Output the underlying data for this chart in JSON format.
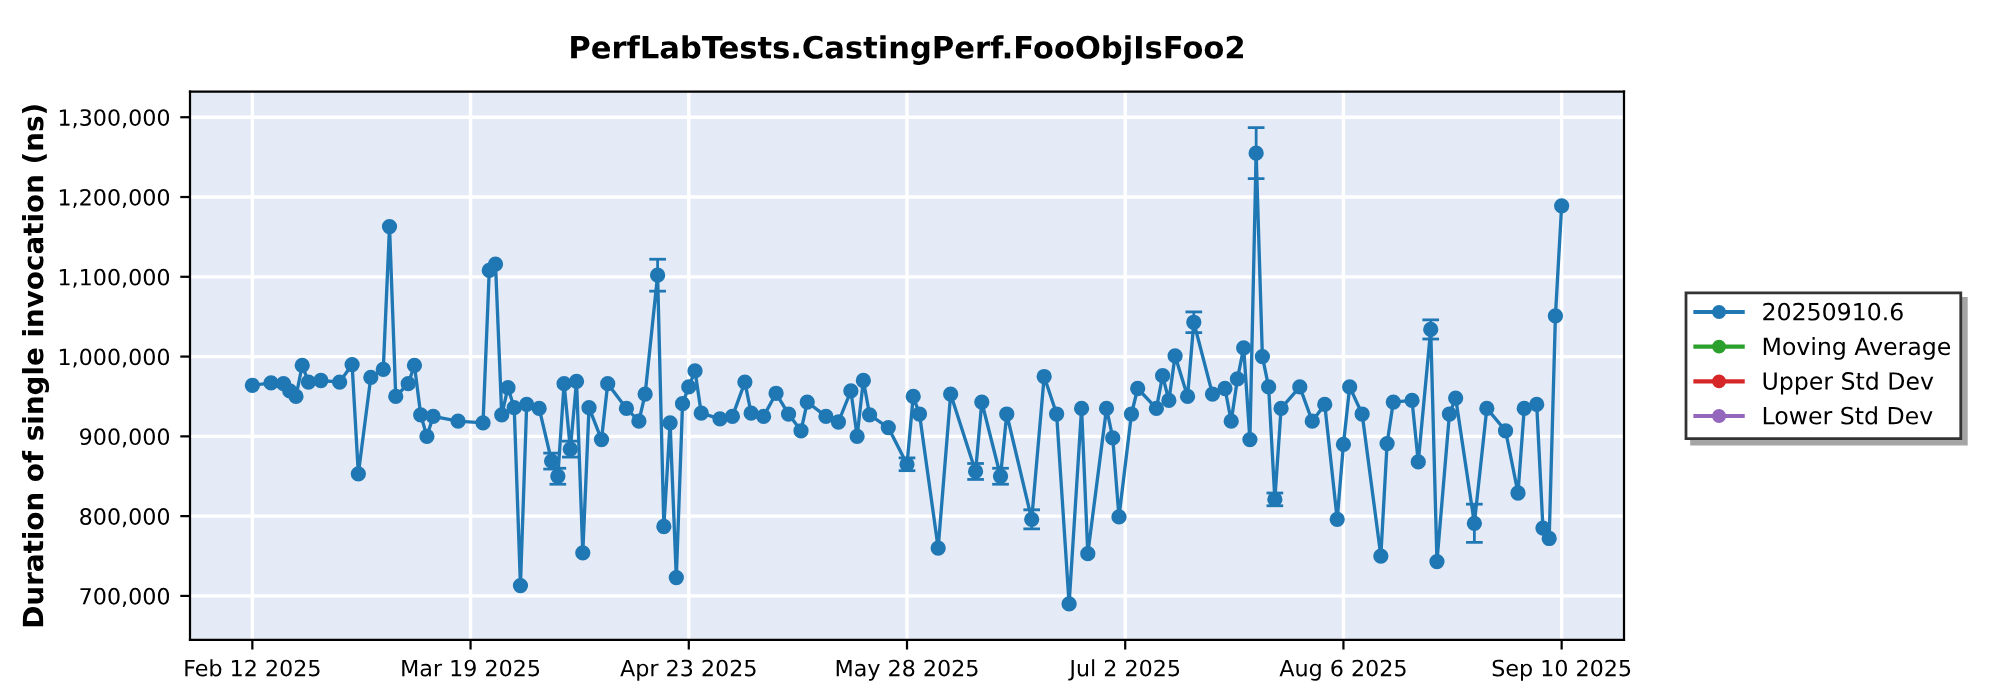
{
  "chart_data": {
    "type": "line",
    "title": "PerfLabTests.CastingPerf.FooObjIsFoo2",
    "ylabel": "Duration of single invocation (ns)",
    "x": [
      "2025-02-12",
      "2025-02-15",
      "2025-02-17",
      "2025-02-18",
      "2025-02-19",
      "2025-02-20",
      "2025-02-21",
      "2025-02-23",
      "2025-02-26",
      "2025-02-28",
      "2025-03-01",
      "2025-03-03",
      "2025-03-05",
      "2025-03-06",
      "2025-03-07",
      "2025-03-09",
      "2025-03-10",
      "2025-03-11",
      "2025-03-12",
      "2025-03-13",
      "2025-03-17",
      "2025-03-21",
      "2025-03-22",
      "2025-03-23",
      "2025-03-24",
      "2025-03-25",
      "2025-03-26",
      "2025-03-27",
      "2025-03-28",
      "2025-03-30",
      "2025-04-01",
      "2025-04-02",
      "2025-04-03",
      "2025-04-04",
      "2025-04-05",
      "2025-04-06",
      "2025-04-07",
      "2025-04-09",
      "2025-04-10",
      "2025-04-13",
      "2025-04-15",
      "2025-04-16",
      "2025-04-18",
      "2025-04-19",
      "2025-04-20",
      "2025-04-21",
      "2025-04-22",
      "2025-04-23",
      "2025-04-24",
      "2025-04-25",
      "2025-04-28",
      "2025-04-30",
      "2025-05-02",
      "2025-05-03",
      "2025-05-05",
      "2025-05-07",
      "2025-05-09",
      "2025-05-11",
      "2025-05-12",
      "2025-05-15",
      "2025-05-17",
      "2025-05-19",
      "2025-05-20",
      "2025-05-21",
      "2025-05-22",
      "2025-05-25",
      "2025-05-28",
      "2025-05-29",
      "2025-05-30",
      "2025-06-02",
      "2025-06-04",
      "2025-06-08",
      "2025-06-09",
      "2025-06-12",
      "2025-06-13",
      "2025-06-17",
      "2025-06-19",
      "2025-06-21",
      "2025-06-23",
      "2025-06-25",
      "2025-06-26",
      "2025-06-29",
      "2025-06-30",
      "2025-07-01",
      "2025-07-03",
      "2025-07-04",
      "2025-07-07",
      "2025-07-08",
      "2025-07-09",
      "2025-07-10",
      "2025-07-12",
      "2025-07-13",
      "2025-07-16",
      "2025-07-18",
      "2025-07-19",
      "2025-07-20",
      "2025-07-21",
      "2025-07-22",
      "2025-07-23",
      "2025-07-24",
      "2025-07-25",
      "2025-07-26",
      "2025-07-27",
      "2025-07-30",
      "2025-08-01",
      "2025-08-03",
      "2025-08-05",
      "2025-08-06",
      "2025-08-07",
      "2025-08-09",
      "2025-08-12",
      "2025-08-13",
      "2025-08-14",
      "2025-08-17",
      "2025-08-18",
      "2025-08-20",
      "2025-08-21",
      "2025-08-23",
      "2025-08-24",
      "2025-08-27",
      "2025-08-29",
      "2025-09-01",
      "2025-09-03",
      "2025-09-04",
      "2025-09-06",
      "2025-09-07",
      "2025-09-08",
      "2025-09-09",
      "2025-09-10"
    ],
    "series": [
      {
        "name": "20250910.6",
        "color": "#1f77b4",
        "values": [
          964000,
          967000,
          966000,
          957000,
          950000,
          989000,
          968000,
          970000,
          968000,
          990000,
          853000,
          974000,
          984000,
          1163000,
          950000,
          966000,
          989000,
          927000,
          900000,
          925000,
          919000,
          917000,
          1108000,
          1116000,
          927000,
          961000,
          936000,
          713000,
          940000,
          935000,
          869000,
          850000,
          966000,
          884000,
          969000,
          754000,
          936000,
          896000,
          966000,
          935000,
          919000,
          953000,
          1102000,
          787000,
          917000,
          723000,
          941000,
          962000,
          982000,
          929000,
          922000,
          925000,
          968000,
          929000,
          925000,
          954000,
          928000,
          907000,
          943000,
          925000,
          918000,
          957000,
          900000,
          970000,
          927000,
          911000,
          865000,
          950000,
          928000,
          760000,
          953000,
          856000,
          943000,
          850000,
          928000,
          796000,
          975000,
          928000,
          690000,
          935000,
          753000,
          935000,
          898000,
          799000,
          928000,
          960000,
          935000,
          976000,
          945000,
          1001000,
          950000,
          1043000,
          953000,
          960000,
          919000,
          972000,
          1011000,
          896000,
          1255000,
          1000000,
          962000,
          821000,
          935000,
          962000,
          919000,
          940000,
          796000,
          890000,
          962000,
          928000,
          750000,
          891000,
          943000,
          945000,
          868000,
          1034000,
          743000,
          928000,
          948000,
          791000,
          935000,
          907000,
          829000,
          935000,
          940000,
          785000,
          772000,
          1051000,
          1189000
        ],
        "errors": [
          null,
          null,
          null,
          null,
          null,
          null,
          null,
          null,
          null,
          null,
          null,
          null,
          null,
          null,
          null,
          null,
          null,
          null,
          null,
          null,
          null,
          null,
          null,
          null,
          null,
          null,
          null,
          null,
          null,
          null,
          10000,
          10000,
          null,
          10000,
          null,
          null,
          null,
          null,
          null,
          null,
          null,
          null,
          20000,
          null,
          null,
          null,
          null,
          null,
          null,
          null,
          null,
          null,
          null,
          null,
          null,
          null,
          null,
          null,
          null,
          null,
          null,
          null,
          null,
          null,
          null,
          null,
          8000,
          null,
          null,
          null,
          null,
          10000,
          null,
          10000,
          null,
          12000,
          null,
          null,
          null,
          null,
          null,
          null,
          null,
          null,
          null,
          null,
          null,
          null,
          null,
          null,
          null,
          13000,
          null,
          null,
          null,
          null,
          null,
          null,
          32000,
          null,
          null,
          8000,
          null,
          null,
          null,
          null,
          null,
          null,
          null,
          null,
          null,
          null,
          null,
          null,
          null,
          12000,
          null,
          null,
          null,
          24000,
          null,
          null,
          null,
          null,
          null,
          null,
          null,
          null,
          null
        ]
      },
      {
        "name": "Moving Average",
        "color": "#2ca02c",
        "values": [
          null,
          null,
          null,
          null,
          null,
          null,
          null,
          null,
          null,
          null,
          null,
          null,
          null,
          null,
          null,
          null,
          null,
          null,
          null,
          null,
          null,
          null,
          null,
          null,
          null,
          null,
          null,
          null,
          null,
          null,
          null,
          null,
          null,
          null,
          null,
          null,
          null,
          null,
          null,
          null,
          null,
          null,
          null,
          null,
          null,
          null,
          null,
          null,
          null,
          null,
          null,
          null,
          null,
          null,
          null,
          null,
          null,
          null,
          null,
          null,
          null,
          null,
          null,
          null,
          null,
          null,
          null,
          null,
          null,
          null,
          null,
          null,
          null,
          null,
          null,
          null,
          null,
          null,
          null,
          null,
          null,
          null,
          null,
          null,
          null,
          null,
          null,
          null,
          null,
          null,
          null,
          null,
          null,
          null,
          null,
          null,
          null,
          null,
          null,
          null,
          null,
          null,
          null,
          null,
          null,
          null,
          null,
          null,
          null,
          null,
          null,
          null,
          null,
          null,
          null,
          null,
          null,
          null,
          null,
          null,
          null,
          null,
          null,
          null,
          null,
          null,
          null,
          null,
          null
        ]
      },
      {
        "name": "Upper Std Dev",
        "color": "#d62728",
        "values": [
          null,
          null,
          null,
          null,
          null,
          null,
          null,
          null,
          null,
          null,
          null,
          null,
          null,
          null,
          null,
          null,
          null,
          null,
          null,
          null,
          null,
          null,
          null,
          null,
          null,
          null,
          null,
          null,
          null,
          null,
          null,
          null,
          null,
          null,
          null,
          null,
          null,
          null,
          null,
          null,
          null,
          null,
          null,
          null,
          null,
          null,
          null,
          null,
          null,
          null,
          null,
          null,
          null,
          null,
          null,
          null,
          null,
          null,
          null,
          null,
          null,
          null,
          null,
          null,
          null,
          null,
          null,
          null,
          null,
          null,
          null,
          null,
          null,
          null,
          null,
          null,
          null,
          null,
          null,
          null,
          null,
          null,
          null,
          null,
          null,
          null,
          null,
          null,
          null,
          null,
          null,
          null,
          null,
          null,
          null,
          null,
          null,
          null,
          null,
          null,
          null,
          null,
          null,
          null,
          null,
          null,
          null,
          null,
          null,
          null,
          null,
          null,
          null,
          null,
          null,
          null,
          null,
          null,
          null,
          null,
          null,
          null,
          null,
          null,
          null,
          null,
          null,
          null,
          null
        ]
      },
      {
        "name": "Lower Std Dev",
        "color": "#9467bd",
        "values": [
          null,
          null,
          null,
          null,
          null,
          null,
          null,
          null,
          null,
          null,
          null,
          null,
          null,
          null,
          null,
          null,
          null,
          null,
          null,
          null,
          null,
          null,
          null,
          null,
          null,
          null,
          null,
          null,
          null,
          null,
          null,
          null,
          null,
          null,
          null,
          null,
          null,
          null,
          null,
          null,
          null,
          null,
          null,
          null,
          null,
          null,
          null,
          null,
          null,
          null,
          null,
          null,
          null,
          null,
          null,
          null,
          null,
          null,
          null,
          null,
          null,
          null,
          null,
          null,
          null,
          null,
          null,
          null,
          null,
          null,
          null,
          null,
          null,
          null,
          null,
          null,
          null,
          null,
          null,
          null,
          null,
          null,
          null,
          null,
          null,
          null,
          null,
          null,
          null,
          null,
          null,
          null,
          null,
          null,
          null,
          null,
          null,
          null,
          null,
          null,
          null,
          null,
          null,
          null,
          null,
          null,
          null,
          null,
          null,
          null,
          null,
          null,
          null,
          null,
          null,
          null,
          null,
          null,
          null,
          null,
          null,
          null,
          null,
          null,
          null,
          null,
          null,
          null,
          null
        ]
      }
    ],
    "xlim": [
      "2025-02-02",
      "2025-09-20"
    ],
    "xticks": [
      {
        "value": "2025-02-12",
        "label": "Feb 12 2025"
      },
      {
        "value": "2025-03-19",
        "label": "Mar 19 2025"
      },
      {
        "value": "2025-04-23",
        "label": "Apr 23 2025"
      },
      {
        "value": "2025-05-28",
        "label": "May 28 2025"
      },
      {
        "value": "2025-07-02",
        "label": "Jul 2 2025"
      },
      {
        "value": "2025-08-06",
        "label": "Aug 6 2025"
      },
      {
        "value": "2025-09-10",
        "label": "Sep 10 2025"
      }
    ],
    "ylim": [
      645000,
      1332000
    ],
    "yticks": [
      {
        "value": 700000,
        "label": "700,000"
      },
      {
        "value": 800000,
        "label": "800,000"
      },
      {
        "value": 900000,
        "label": "900,000"
      },
      {
        "value": 1000000,
        "label": "1,000,000"
      },
      {
        "value": 1100000,
        "label": "1,100,000"
      },
      {
        "value": 1200000,
        "label": "1,200,000"
      },
      {
        "value": 1300000,
        "label": "1,300,000"
      }
    ],
    "grid": true,
    "legend": "right",
    "marker": "circle",
    "line_style": "solid"
  }
}
